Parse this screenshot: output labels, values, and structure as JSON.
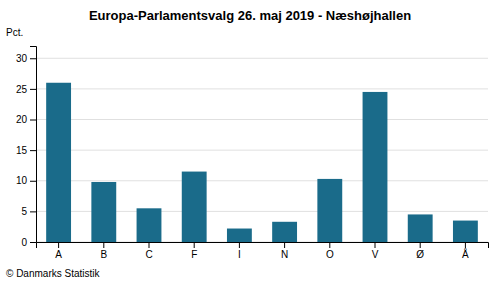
{
  "chart_data": {
    "type": "bar",
    "title": "Europa-Parlamentsvalg 26. maj 2019 - Næshøjhallen",
    "ylabel": "Pct.",
    "annotations": [
      "© Danmarks Statistik"
    ],
    "categories": [
      "A",
      "B",
      "C",
      "F",
      "I",
      "N",
      "O",
      "V",
      "Ø",
      "Å"
    ],
    "values": [
      26.0,
      9.8,
      5.5,
      11.5,
      2.2,
      3.3,
      10.3,
      24.5,
      4.5,
      3.5
    ],
    "color": "#1a6b8a",
    "ylim": [
      0,
      32
    ],
    "yticks": [
      0,
      5,
      10,
      15,
      20,
      25,
      30
    ],
    "grid": true
  }
}
